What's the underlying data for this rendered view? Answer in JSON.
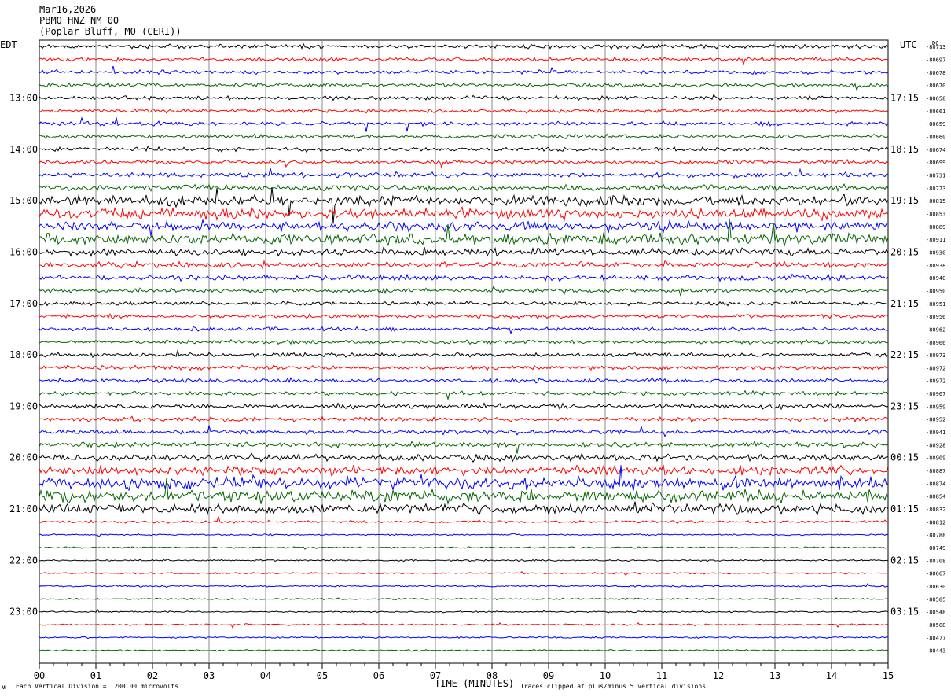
{
  "header": {
    "date": "Mar16,2026",
    "station": "PBMO HNZ NM 00",
    "location": "(Poplar Bluff, MO (CERI))"
  },
  "left_tz": "EDT",
  "right_tz": "UTC",
  "dc_label": "DC",
  "footer": {
    "scale_note": "Each Vertical Division =  200.00 microvolts",
    "clip_note": "Traces clipped at plus/minus 5 vertical divisions",
    "logo_text": "ᴍ"
  },
  "colors": {
    "trace_cycle": [
      "#000000",
      "#ff0000",
      "#0000ff",
      "#006400"
    ],
    "grid": "#888888"
  },
  "chart_data": {
    "type": "line",
    "xlabel": "TIME (MINUTES)",
    "x_ticks": [
      "00",
      "01",
      "02",
      "03",
      "04",
      "05",
      "06",
      "07",
      "08",
      "09",
      "10",
      "11",
      "12",
      "13",
      "14",
      "15"
    ],
    "xlim": [
      0,
      15
    ],
    "left_hour_labels": [
      {
        "row": 4,
        "label": "13:00"
      },
      {
        "row": 8,
        "label": "14:00"
      },
      {
        "row": 12,
        "label": "15:00"
      },
      {
        "row": 16,
        "label": "16:00"
      },
      {
        "row": 20,
        "label": "17:00"
      },
      {
        "row": 24,
        "label": "18:00"
      },
      {
        "row": 28,
        "label": "19:00"
      },
      {
        "row": 32,
        "label": "20:00"
      },
      {
        "row": 36,
        "label": "21:00"
      },
      {
        "row": 40,
        "label": "22:00"
      },
      {
        "row": 44,
        "label": "23:00"
      }
    ],
    "right_hour_labels": [
      {
        "row": 4,
        "label": "17:15"
      },
      {
        "row": 8,
        "label": "18:15"
      },
      {
        "row": 12,
        "label": "19:15"
      },
      {
        "row": 16,
        "label": "20:15"
      },
      {
        "row": 20,
        "label": "21:15"
      },
      {
        "row": 24,
        "label": "22:15"
      },
      {
        "row": 28,
        "label": "23:15"
      },
      {
        "row": 32,
        "label": "00:15"
      },
      {
        "row": 36,
        "label": "01:15"
      },
      {
        "row": 40,
        "label": "02:15"
      },
      {
        "row": 44,
        "label": "03:15"
      }
    ],
    "dc_values": [
      "-80713",
      "-80697",
      "-80678",
      "-80670",
      "-80658",
      "-80661",
      "-80659",
      "-80660",
      "-80674",
      "-80699",
      "-80731",
      "-80773",
      "-80815",
      "-80853",
      "-80889",
      "-80911",
      "-80930",
      "-80938",
      "-80940",
      "-80950",
      "-80951",
      "-80956",
      "-80962",
      "-80966",
      "-80973",
      "-80972",
      "-80972",
      "-80967",
      "-80959",
      "-80952",
      "-80941",
      "-80928",
      "-80909",
      "-80887",
      "-80874",
      "-80854",
      "-80832",
      "-80812",
      "-80788",
      "-80749",
      "-80708",
      "-80667",
      "-80630",
      "-80585",
      "-80548",
      "-80508",
      "-80477",
      "-80443"
    ],
    "noise_level": [
      1,
      1,
      1,
      1,
      1,
      1,
      1,
      1,
      1,
      1,
      1.2,
      1.5,
      2.6,
      2.8,
      2.4,
      2.8,
      1.8,
      1.5,
      1.4,
      1,
      1,
      1,
      1,
      1,
      1,
      1,
      1,
      1,
      1.2,
      1.1,
      1.1,
      1.3,
      1.6,
      2.2,
      3,
      3,
      2.4,
      0.6,
      0.4,
      0.4,
      0.4,
      0.4,
      0.4,
      0.4,
      0.4,
      0.4,
      0.4,
      0.4
    ]
  }
}
